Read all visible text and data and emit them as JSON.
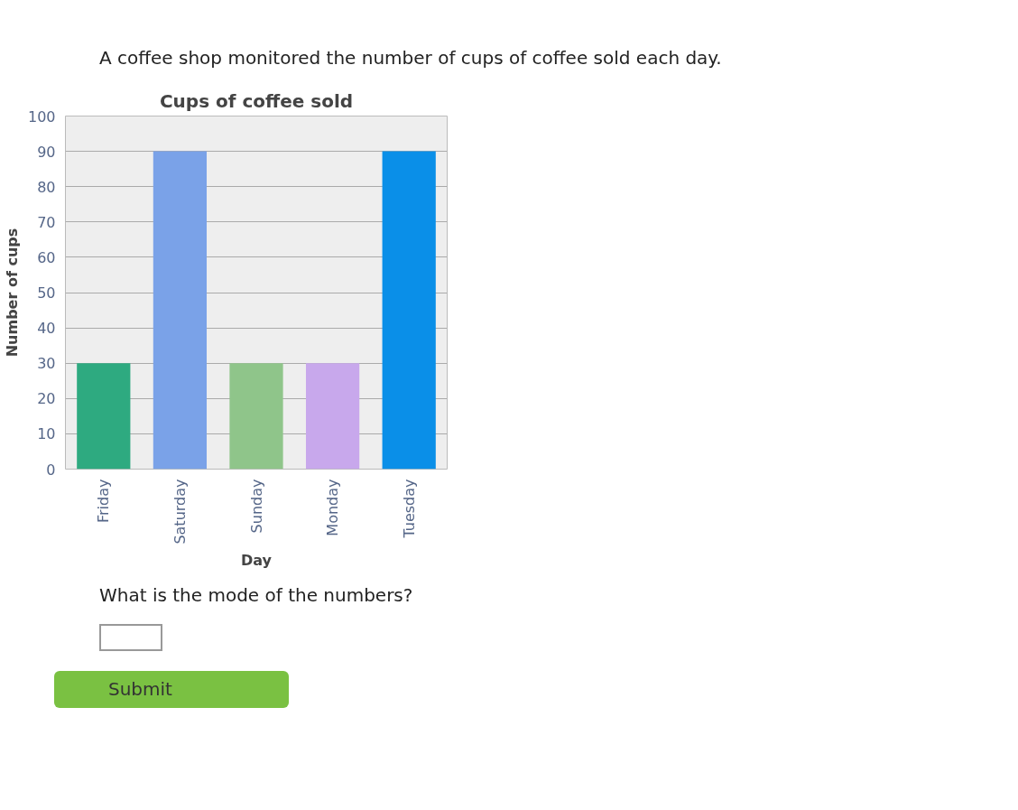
{
  "chart_data": {
    "type": "bar",
    "title": "Cups of coffee sold",
    "xlabel": "Day",
    "ylabel": "Number of cups",
    "categories": [
      "Friday",
      "Saturday",
      "Sunday",
      "Monday",
      "Tuesday"
    ],
    "values": [
      30,
      90,
      30,
      30,
      90
    ],
    "colors": [
      "#2eaa80",
      "#7aa2e8",
      "#8fc58a",
      "#c8a8ec",
      "#0a8fe8"
    ],
    "ylim": [
      0,
      100
    ],
    "yticks": [
      0,
      10,
      20,
      30,
      40,
      50,
      60,
      70,
      80,
      90,
      100
    ],
    "grid": "y",
    "annotations": [
      "A coffee shop monitored the number of cups of coffee sold each day.",
      "What is the mode of the numbers?",
      "Submit"
    ]
  }
}
